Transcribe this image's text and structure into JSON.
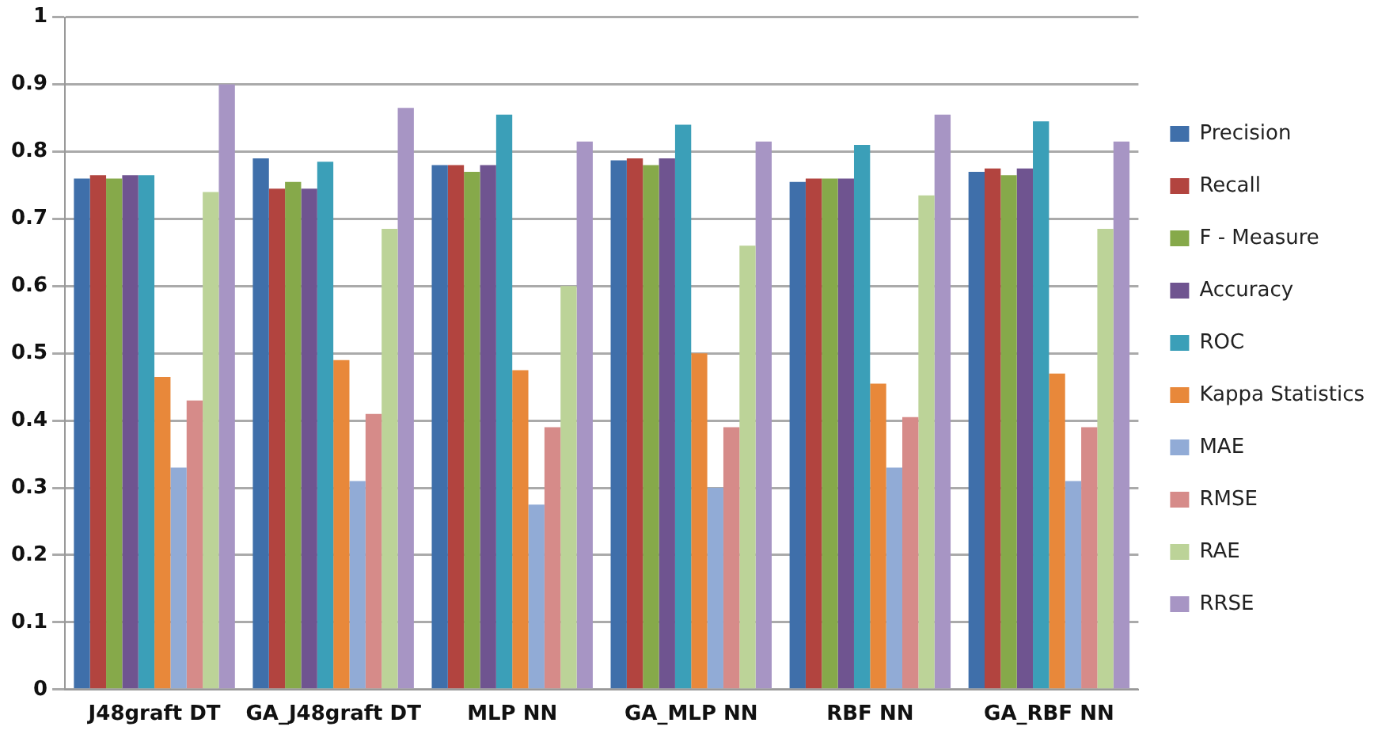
{
  "chart_data": {
    "type": "bar",
    "categories": [
      "J48graft DT",
      "GA_J48graft DT",
      "MLP NN",
      "GA_MLP NN",
      "RBF NN",
      "GA_RBF NN"
    ],
    "series": [
      {
        "name": "Precision",
        "color": "#3f6faa",
        "values": [
          0.76,
          0.79,
          0.78,
          0.787,
          0.755,
          0.77
        ]
      },
      {
        "name": "Recall",
        "color": "#b2443f",
        "values": [
          0.765,
          0.745,
          0.78,
          0.79,
          0.76,
          0.775
        ]
      },
      {
        "name": "F - Measure",
        "color": "#86a94a",
        "values": [
          0.76,
          0.755,
          0.77,
          0.78,
          0.76,
          0.765
        ]
      },
      {
        "name": "Accuracy",
        "color": "#6f5490",
        "values": [
          0.765,
          0.745,
          0.78,
          0.79,
          0.76,
          0.775
        ]
      },
      {
        "name": "ROC",
        "color": "#3b9fb8",
        "values": [
          0.765,
          0.785,
          0.855,
          0.84,
          0.81,
          0.845
        ]
      },
      {
        "name": "Kappa Statistics",
        "color": "#e8883a",
        "values": [
          0.465,
          0.49,
          0.475,
          0.5,
          0.455,
          0.47
        ]
      },
      {
        "name": "MAE",
        "color": "#91abd6",
        "values": [
          0.33,
          0.31,
          0.275,
          0.3,
          0.33,
          0.31
        ]
      },
      {
        "name": "RMSE",
        "color": "#d68b89",
        "values": [
          0.43,
          0.41,
          0.39,
          0.39,
          0.405,
          0.39
        ]
      },
      {
        "name": "RAE",
        "color": "#bcd398",
        "values": [
          0.74,
          0.685,
          0.6,
          0.66,
          0.735,
          0.685
        ]
      },
      {
        "name": "RRSE",
        "color": "#a795c4",
        "values": [
          0.9,
          0.865,
          0.815,
          0.815,
          0.855,
          0.815
        ]
      }
    ],
    "ylim": [
      0,
      1
    ],
    "yticks": [
      0,
      0.1,
      0.2,
      0.3,
      0.4,
      0.5,
      0.6,
      0.7,
      0.8,
      0.9,
      1
    ],
    "grid": "y",
    "legend": "right"
  }
}
